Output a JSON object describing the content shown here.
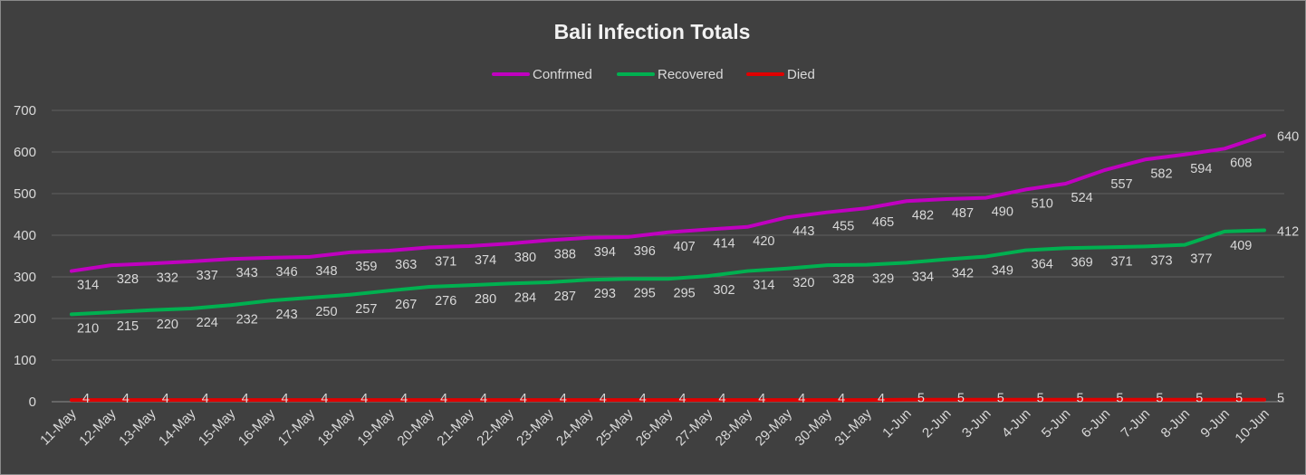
{
  "chart_data": {
    "type": "line",
    "title": "Bali Infection Totals",
    "xlabel": "",
    "ylabel": "",
    "ylim": [
      0,
      700
    ],
    "yticks": [
      0,
      100,
      200,
      300,
      400,
      500,
      600,
      700
    ],
    "grid": true,
    "legend_position": "top",
    "categories": [
      "11-May",
      "12-May",
      "13-May",
      "14-May",
      "15-May",
      "16-May",
      "17-May",
      "18-May",
      "19-May",
      "20-May",
      "21-May",
      "22-May",
      "23-May",
      "24-May",
      "25-May",
      "26-May",
      "27-May",
      "28-May",
      "29-May",
      "30-May",
      "31-May",
      "1-Jun",
      "2-Jun",
      "3-Jun",
      "4-Jun",
      "5-Jun",
      "6-Jun",
      "7-Jun",
      "8-Jun",
      "9-Jun",
      "10-Jun"
    ],
    "series": [
      {
        "name": "Confrmed",
        "color": "#c000c0",
        "values": [
          314,
          328,
          332,
          337,
          343,
          346,
          348,
          359,
          363,
          371,
          374,
          380,
          388,
          394,
          396,
          407,
          414,
          420,
          443,
          455,
          465,
          482,
          487,
          490,
          510,
          524,
          557,
          582,
          594,
          608,
          640
        ]
      },
      {
        "name": "Recovered",
        "color": "#00b050",
        "values": [
          210,
          215,
          220,
          224,
          232,
          243,
          250,
          257,
          267,
          276,
          280,
          284,
          287,
          293,
          295,
          295,
          302,
          314,
          320,
          328,
          329,
          334,
          342,
          349,
          364,
          369,
          371,
          373,
          377,
          409,
          412
        ]
      },
      {
        "name": "Died",
        "color": "#e00000",
        "values": [
          4,
          4,
          4,
          4,
          4,
          4,
          4,
          4,
          4,
          4,
          4,
          4,
          4,
          4,
          4,
          4,
          4,
          4,
          4,
          4,
          4,
          5,
          5,
          5,
          5,
          5,
          5,
          5,
          5,
          5,
          5
        ]
      }
    ]
  }
}
